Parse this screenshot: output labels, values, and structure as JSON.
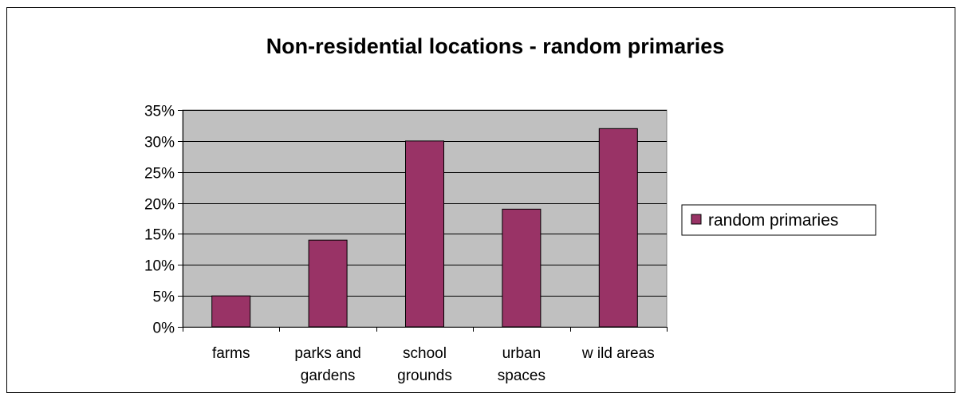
{
  "chart_data": {
    "type": "bar",
    "title": "Non-residential locations - random primaries",
    "categories": [
      [
        "farms"
      ],
      [
        "parks and",
        "gardens"
      ],
      [
        "school",
        "grounds"
      ],
      [
        "urban",
        "spaces"
      ],
      [
        "w ild areas"
      ]
    ],
    "series": [
      {
        "name": "random primaries",
        "values": [
          5,
          14,
          30,
          19,
          32
        ],
        "color": "#993366"
      }
    ],
    "ylim": [
      0,
      35
    ],
    "yticks": [
      "0%",
      "5%",
      "10%",
      "15%",
      "20%",
      "25%",
      "30%",
      "35%"
    ],
    "plot_background": "#c0c0c0",
    "grid": true,
    "legend_position": "right"
  }
}
